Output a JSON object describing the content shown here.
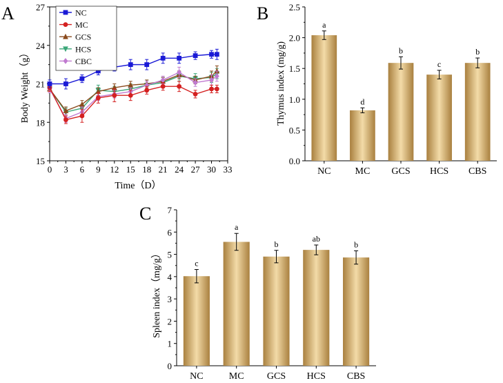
{
  "colors": {
    "bar_dark": "#a9803f",
    "bar_light": "#f3dba8",
    "NC": "#1a1ad6",
    "MC": "#d42020",
    "GCS": "#8a4a1c",
    "HCS": "#3aa678",
    "CBC": "#c07ad0"
  },
  "chart_data": [
    {
      "panel": "A",
      "type": "line",
      "title": "",
      "xlabel": "Time（D）",
      "ylabel": "Body Weight（g）",
      "xlim": [
        0,
        33
      ],
      "ylim": [
        15,
        27
      ],
      "xticks": [
        0,
        3,
        6,
        9,
        12,
        15,
        18,
        21,
        24,
        27,
        30,
        33
      ],
      "yticks": [
        15,
        18,
        21,
        24,
        27
      ],
      "legend_position": "top-left",
      "x": [
        0,
        3,
        6,
        9,
        12,
        15,
        18,
        21,
        24,
        27,
        30,
        31
      ],
      "series": [
        {
          "name": "NC",
          "marker": "square",
          "values": [
            21.0,
            21.0,
            21.4,
            22.0,
            22.3,
            22.5,
            22.5,
            23.0,
            23.0,
            23.2,
            23.3,
            23.3
          ],
          "errors": [
            0.3,
            0.4,
            0.3,
            0.3,
            0.3,
            0.4,
            0.4,
            0.4,
            0.4,
            0.3,
            0.3,
            0.4
          ]
        },
        {
          "name": "MC",
          "marker": "circle",
          "values": [
            20.7,
            18.2,
            18.5,
            19.9,
            20.1,
            20.1,
            20.5,
            20.8,
            20.8,
            20.2,
            20.6,
            20.6
          ],
          "errors": [
            0.3,
            0.3,
            0.5,
            0.4,
            0.5,
            0.4,
            0.3,
            0.3,
            0.4,
            0.3,
            0.3,
            0.3
          ]
        },
        {
          "name": "GCS",
          "marker": "triangle-up",
          "values": [
            20.6,
            18.9,
            19.4,
            20.4,
            20.7,
            20.9,
            21.0,
            21.2,
            21.7,
            21.3,
            21.6,
            22.0
          ],
          "errors": [
            0.3,
            0.3,
            0.3,
            0.3,
            0.3,
            0.3,
            0.3,
            0.3,
            0.3,
            0.3,
            0.4,
            0.4
          ]
        },
        {
          "name": "HCS",
          "marker": "triangle-down",
          "values": [
            20.6,
            18.8,
            19.1,
            20.5,
            20.4,
            20.6,
            20.9,
            21.1,
            21.6,
            21.4,
            21.5,
            21.8
          ],
          "errors": [
            0.3,
            0.3,
            0.3,
            0.4,
            0.4,
            0.4,
            0.4,
            0.4,
            0.4,
            0.4,
            0.4,
            0.4
          ]
        },
        {
          "name": "CBC",
          "marker": "diamond",
          "values": [
            20.6,
            18.3,
            18.8,
            20.0,
            20.2,
            20.4,
            20.9,
            21.3,
            21.9,
            21.1,
            21.3,
            21.6
          ],
          "errors": [
            0.3,
            0.3,
            0.4,
            0.3,
            0.3,
            0.3,
            0.3,
            0.3,
            0.4,
            0.3,
            0.4,
            0.4
          ]
        }
      ]
    },
    {
      "panel": "B",
      "type": "bar",
      "title": "",
      "xlabel": "",
      "ylabel": "Thymus index (mg/g)",
      "ylim": [
        0,
        2.5
      ],
      "yticks": [
        "0.0",
        "0.5",
        "1.0",
        "1.5",
        "2.0",
        "2.5"
      ],
      "categories": [
        "NC",
        "MC",
        "GCS",
        "HCS",
        "CBS"
      ],
      "values": [
        2.04,
        0.82,
        1.59,
        1.4,
        1.59
      ],
      "errors": [
        0.07,
        0.04,
        0.1,
        0.07,
        0.08
      ],
      "letters": [
        "a",
        "d",
        "b",
        "c",
        "b"
      ]
    },
    {
      "panel": "C",
      "type": "bar",
      "title": "",
      "xlabel": "",
      "ylabel": "Spleen index（mg/g）",
      "ylim": [
        0,
        7
      ],
      "yticks": [
        "0",
        "1",
        "2",
        "3",
        "4",
        "5",
        "6",
        "7"
      ],
      "categories": [
        "NC",
        "MC",
        "GCS",
        "HCS",
        "CBS"
      ],
      "values": [
        4.02,
        5.56,
        4.9,
        5.2,
        4.86
      ],
      "errors": [
        0.3,
        0.38,
        0.28,
        0.22,
        0.3
      ],
      "letters": [
        "c",
        "a",
        "b",
        "ab",
        "b"
      ]
    }
  ]
}
